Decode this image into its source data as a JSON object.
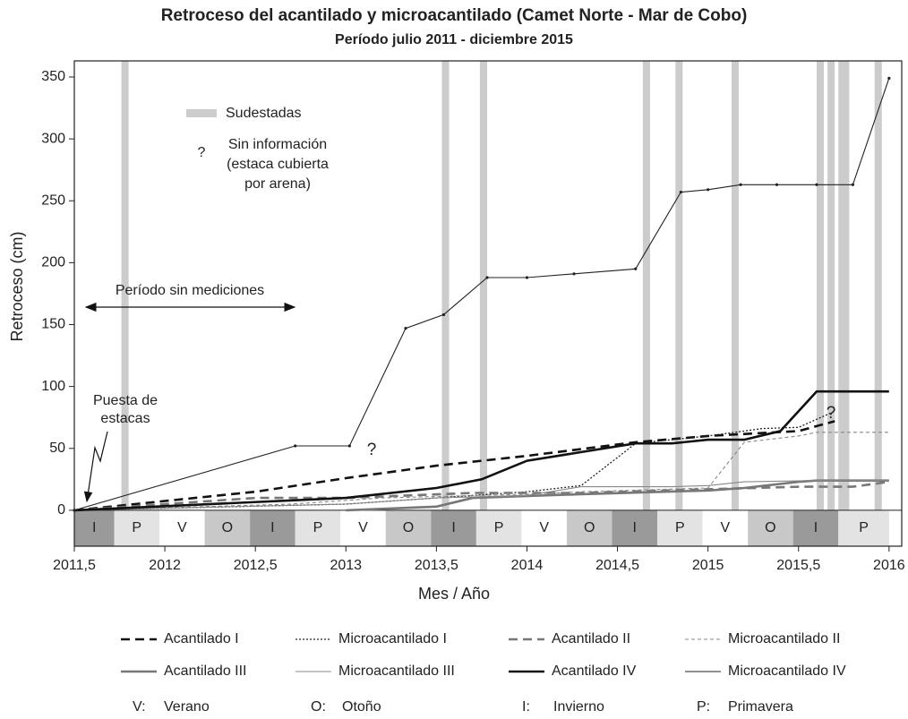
{
  "chart_data": {
    "type": "line",
    "title": "Retroceso del acantilado y microacantilado (Camet Norte - Mar de Cobo)",
    "subtitle": "Período julio 2011 - diciembre 2015",
    "xlabel": "Mes / Año",
    "ylabel": "Retroceso (cm)",
    "xlim": [
      2011.5,
      2016.07
    ],
    "ylim": [
      -29,
      363
    ],
    "xticks": [
      {
        "value": 2011.5,
        "label": "2011,5"
      },
      2012,
      {
        "value": 2012.5,
        "label": "2012,5"
      },
      2013,
      {
        "value": 2013.5,
        "label": "2013,5"
      },
      2014,
      {
        "value": 2014.5,
        "label": "2014,5"
      },
      2015,
      {
        "value": 2015.5,
        "label": "2015,5"
      },
      2016
    ],
    "yticks": [
      0,
      50,
      100,
      150,
      200,
      250,
      300,
      350
    ],
    "series": [
      {
        "name": "Acantilado I",
        "color": "#111111",
        "dash": "10,6",
        "width": 2.6,
        "x": [
          2011.5,
          2012.5,
          2013.0,
          2013.5,
          2014.0,
          2014.6,
          2015.0,
          2015.5,
          2015.7
        ],
        "values": [
          0,
          15,
          26,
          36,
          44,
          55,
          60,
          64,
          72
        ]
      },
      {
        "name": "Microacantilado I",
        "color": "#222222",
        "dash": "2,2",
        "width": 1.3,
        "x": [
          2011.5,
          2013.0,
          2013.5,
          2014.0,
          2014.3,
          2014.6,
          2015.0,
          2015.3,
          2015.5,
          2015.7
        ],
        "values": [
          0,
          5,
          10,
          15,
          20,
          54,
          60,
          66,
          67,
          80
        ]
      },
      {
        "name": "Acantilado II",
        "color": "#777777",
        "dash": "10,6",
        "width": 2.6,
        "x": [
          2011.5,
          2012.5,
          2013.0,
          2013.7,
          2014.3,
          2015.0,
          2015.5,
          2015.8,
          2016.0
        ],
        "values": [
          0,
          10,
          10,
          14,
          14,
          17,
          19,
          19,
          23
        ]
      },
      {
        "name": "Microacantilado II",
        "color": "#888888",
        "dash": "4,3",
        "width": 1.1,
        "x": [
          2011.5,
          2012.7,
          2013.2,
          2014.0,
          2014.3,
          2015.0,
          2015.2,
          2015.5,
          2015.6,
          2016.0
        ],
        "values": [
          0,
          5,
          10,
          13,
          15,
          18,
          55,
          60,
          63,
          63
        ]
      },
      {
        "name": "Acantilado III",
        "color": "#777777",
        "dash": "",
        "width": 2.6,
        "x": [
          2013.0,
          2013.5,
          2013.7,
          2014.3,
          2015.0,
          2015.2,
          2015.5,
          2015.6,
          2016.0
        ],
        "values": [
          0,
          3,
          10,
          13,
          16,
          18,
          23,
          24,
          24
        ]
      },
      {
        "name": "Microacantilado III",
        "color": "#888888",
        "dash": "",
        "width": 1.1,
        "x": [
          2011.5,
          2013.0,
          2013.5,
          2014.0,
          2014.3,
          2014.8,
          2015.0,
          2015.2,
          2015.6,
          2016.0
        ],
        "values": [
          0,
          5,
          10,
          12,
          19,
          19,
          20,
          23,
          24,
          24
        ]
      },
      {
        "name": "Acantilado IV",
        "color": "#111111",
        "dash": "",
        "width": 2.6,
        "x": [
          2011.5,
          2013.0,
          2013.5,
          2013.75,
          2014.0,
          2014.3,
          2014.6,
          2014.8,
          2015.0,
          2015.2,
          2015.4,
          2015.6,
          2016.0
        ],
        "values": [
          0,
          10,
          18,
          25,
          40,
          47,
          54,
          54,
          57,
          57,
          64,
          96,
          96
        ]
      },
      {
        "name": "Microacantilado IV",
        "color": "#222222",
        "dash": "",
        "width": 1.1,
        "markers": true,
        "x": [
          2011.5,
          2012.72,
          2013.02,
          2013.33,
          2013.54,
          2013.78,
          2014.0,
          2014.26,
          2014.6,
          2014.85,
          2015.0,
          2015.18,
          2015.38,
          2015.6,
          2015.8,
          2016.0
        ],
        "values": [
          0,
          52,
          52,
          147,
          158,
          188,
          188,
          191,
          195,
          257,
          259,
          263,
          263,
          263,
          263,
          349
        ]
      }
    ],
    "season_edges": [
      2011.5,
      2011.72,
      2011.97,
      2012.22,
      2012.47,
      2012.72,
      2012.97,
      2013.22,
      2013.47,
      2013.72,
      2013.97,
      2014.22,
      2014.47,
      2014.72,
      2014.97,
      2015.22,
      2015.47,
      2015.72,
      2016.0
    ],
    "seasons": [
      {
        "label": "I",
        "color": "#9a9a9a"
      },
      {
        "label": "P",
        "color": "#e3e3e3"
      },
      {
        "label": "V",
        "color": "#ffffff"
      },
      {
        "label": "O",
        "color": "#c8c8c8"
      },
      {
        "label": "I",
        "color": "#9a9a9a"
      },
      {
        "label": "P",
        "color": "#e3e3e3"
      },
      {
        "label": "V",
        "color": "#ffffff"
      },
      {
        "label": "O",
        "color": "#c8c8c8"
      },
      {
        "label": "I",
        "color": "#9a9a9a"
      },
      {
        "label": "P",
        "color": "#e3e3e3"
      },
      {
        "label": "V",
        "color": "#ffffff"
      },
      {
        "label": "O",
        "color": "#c8c8c8"
      },
      {
        "label": "I",
        "color": "#9a9a9a"
      },
      {
        "label": "P",
        "color": "#e3e3e3"
      },
      {
        "label": "V",
        "color": "#ffffff"
      },
      {
        "label": "O",
        "color": "#c8c8c8"
      },
      {
        "label": "I",
        "color": "#9a9a9a"
      },
      {
        "label": "P",
        "color": "#e3e3e3"
      }
    ],
    "sudestadas": [
      [
        2011.76,
        2011.8
      ],
      [
        2013.53,
        2013.57
      ],
      [
        2013.74,
        2013.78
      ],
      [
        2014.64,
        2014.68
      ],
      [
        2014.82,
        2014.86
      ],
      [
        2015.13,
        2015.17
      ],
      [
        2015.6,
        2015.64
      ],
      [
        2015.66,
        2015.7
      ],
      [
        2015.72,
        2015.78
      ],
      [
        2015.92,
        2015.96
      ]
    ],
    "sudestadas_color": "#cccccc",
    "legend_sudestadas": "Sudestadas",
    "legend_unknown_mark": "?",
    "legend_unknown_text": [
      "Sin información",
      "(estaca cubierta",
      "por arena)"
    ],
    "annotation_period": "Período sin mediciones",
    "annotation_start": [
      "Puesta de",
      "estacas"
    ],
    "unknown_marks": [
      "?",
      "?"
    ],
    "season_legend": [
      {
        "key": "V:",
        "name": "Verano"
      },
      {
        "key": "O:",
        "name": "Otoño"
      },
      {
        "key": "I:",
        "name": "Invierno"
      },
      {
        "key": "P:",
        "name": "Primavera"
      }
    ]
  }
}
